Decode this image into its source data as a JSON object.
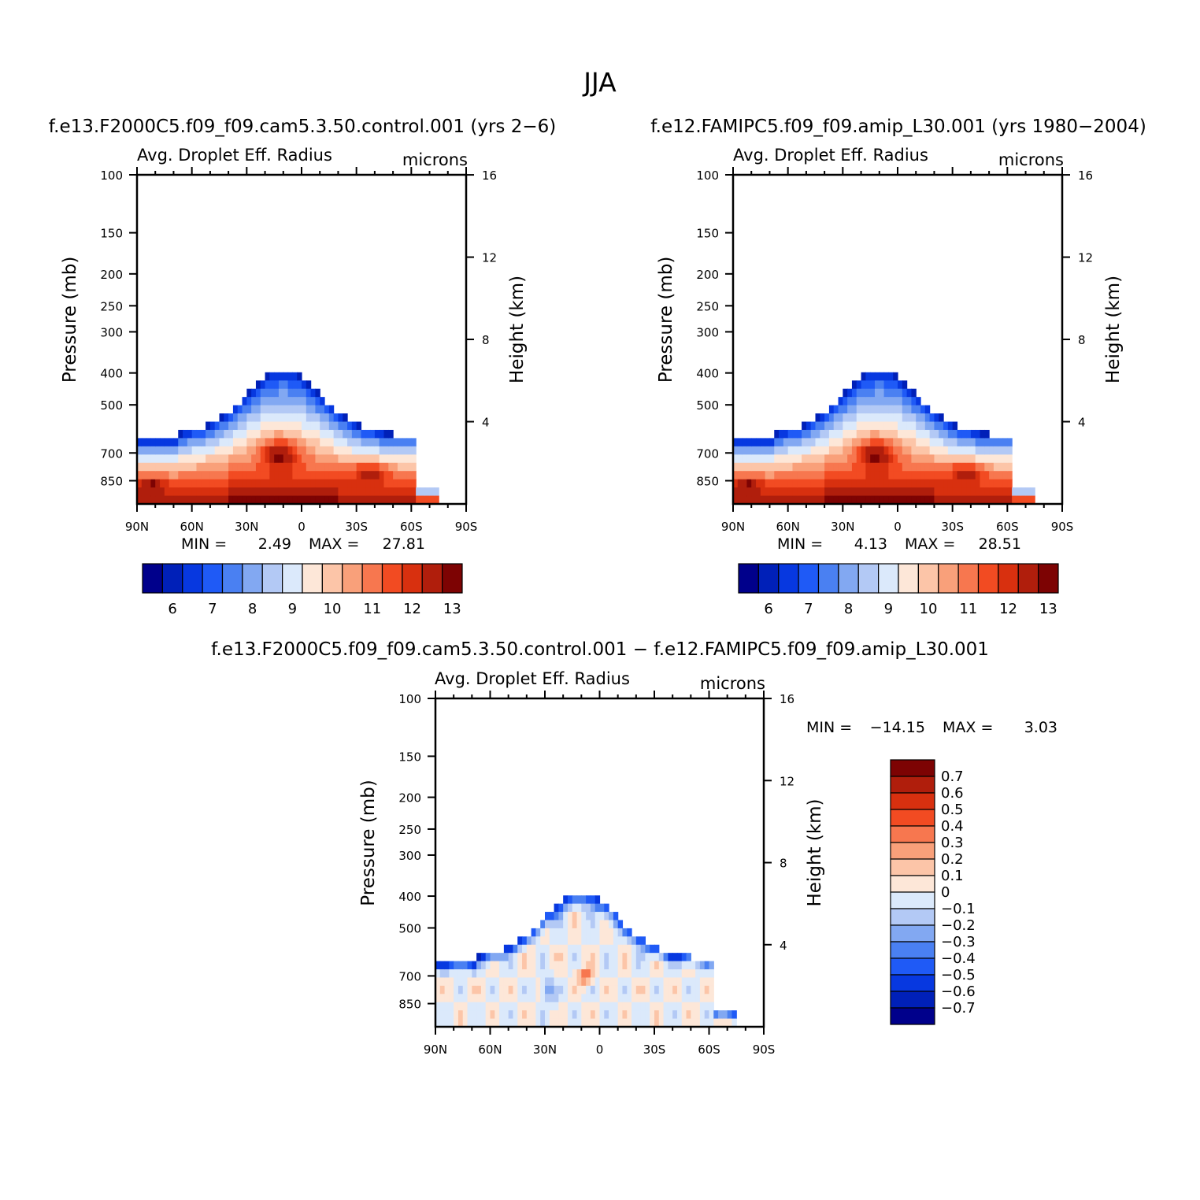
{
  "page_title": "JJA",
  "panels": {
    "p1": {
      "run": "f.e13.F2000C5.f09_f09.cam5.3.50.control.001 (yrs 2−6)",
      "variable": "Avg. Droplet Eff. Radius",
      "units": "microns",
      "ylabel": "Pressure (mb)",
      "ylabel_right": "Height (km)",
      "min_label": "MIN =",
      "min_value": "2.49",
      "max_label": "MAX =",
      "max_value": "27.81"
    },
    "p2": {
      "run": "f.e12.FAMIPC5.f09_f09.amip_L30.001 (yrs 1980−2004)",
      "variable": "Avg. Droplet Eff. Radius",
      "units": "microns",
      "ylabel": "Pressure (mb)",
      "ylabel_right": "Height (km)",
      "min_label": "MIN =",
      "min_value": "4.13",
      "max_label": "MAX =",
      "max_value": "28.51"
    },
    "p3": {
      "run": "f.e13.F2000C5.f09_f09.cam5.3.50.control.001 − f.e12.FAMIPC5.f09_f09.amip_L30.001",
      "variable": "Avg. Droplet Eff. Radius",
      "units": "microns",
      "ylabel": "Pressure (mb)",
      "ylabel_right": "Height (km)",
      "min_label": "MIN =",
      "min_value": "−14.15",
      "max_label": "MAX =",
      "max_value": "3.03"
    }
  },
  "colors": {
    "abs_scale": [
      "#00008b",
      "#0020b8",
      "#0738e0",
      "#1f5af6",
      "#4a80f2",
      "#82a8f2",
      "#b3c9f5",
      "#dbe9fb",
      "#fde7d8",
      "#fcc5a8",
      "#f9a07a",
      "#f7774f",
      "#f24b22",
      "#d8300f",
      "#b01e0c",
      "#7d0303"
    ],
    "diff_scale": [
      "#00008b",
      "#0020b8",
      "#0738e0",
      "#1f5af6",
      "#4a80f2",
      "#82a8f2",
      "#b3c9f5",
      "#dbe9fb",
      "#fde7d8",
      "#fcc5a8",
      "#f9a07a",
      "#f7774f",
      "#f24b22",
      "#d8300f",
      "#b01e0c",
      "#7d0303"
    ]
  },
  "chart_data": [
    {
      "type": "heatmap",
      "title": "Avg. Droplet Eff. Radius",
      "x_ticks": [
        "90N",
        "60N",
        "30N",
        "0",
        "30S",
        "60S",
        "90S"
      ],
      "x_range": [
        90,
        -90
      ],
      "y_ticks": [
        "100",
        "150",
        "200",
        "250",
        "300",
        "400",
        "500",
        "700",
        "850"
      ],
      "y_tick_values": [
        100,
        150,
        200,
        250,
        300,
        400,
        500,
        700,
        850
      ],
      "y_range": [
        100,
        1000
      ],
      "height_ticks": [
        "16",
        "12",
        "8",
        "4"
      ],
      "height_tick_values": [
        16,
        12,
        8,
        4
      ],
      "colorbar_levels": [
        "6",
        "7",
        "8",
        "9",
        "10",
        "11",
        "12",
        "13"
      ],
      "min": 2.49,
      "max": 27.81,
      "ylabel": "Pressure (mb)",
      "ylabel_right": "Height (km)"
    },
    {
      "type": "heatmap",
      "title": "Avg. Droplet Eff. Radius",
      "x_ticks": [
        "90N",
        "60N",
        "30N",
        "0",
        "30S",
        "60S",
        "90S"
      ],
      "x_range": [
        90,
        -90
      ],
      "y_ticks": [
        "100",
        "150",
        "200",
        "250",
        "300",
        "400",
        "500",
        "700",
        "850"
      ],
      "y_tick_values": [
        100,
        150,
        200,
        250,
        300,
        400,
        500,
        700,
        850
      ],
      "y_range": [
        100,
        1000
      ],
      "height_ticks": [
        "16",
        "12",
        "8",
        "4"
      ],
      "height_tick_values": [
        16,
        12,
        8,
        4
      ],
      "colorbar_levels": [
        "6",
        "7",
        "8",
        "9",
        "10",
        "11",
        "12",
        "13"
      ],
      "min": 4.13,
      "max": 28.51,
      "ylabel": "Pressure (mb)",
      "ylabel_right": "Height (km)"
    },
    {
      "type": "heatmap",
      "title": "Avg. Droplet Eff. Radius",
      "x_ticks": [
        "90N",
        "60N",
        "30N",
        "0",
        "30S",
        "60S",
        "90S"
      ],
      "x_range": [
        90,
        -90
      ],
      "y_ticks": [
        "100",
        "150",
        "200",
        "250",
        "300",
        "400",
        "500",
        "700",
        "850"
      ],
      "y_tick_values": [
        100,
        150,
        200,
        250,
        300,
        400,
        500,
        700,
        850
      ],
      "y_range": [
        100,
        1000
      ],
      "height_ticks": [
        "16",
        "12",
        "8",
        "4"
      ],
      "height_tick_values": [
        16,
        12,
        8,
        4
      ],
      "colorbar_levels": [
        "0.7",
        "0.6",
        "0.5",
        "0.4",
        "0.3",
        "0.2",
        "0.1",
        "0",
        "−0.1",
        "−0.2",
        "−0.3",
        "−0.4",
        "−0.5",
        "−0.6",
        "−0.7"
      ],
      "min": -14.15,
      "max": 3.03,
      "ylabel": "Pressure (mb)",
      "ylabel_right": "Height (km)"
    }
  ]
}
